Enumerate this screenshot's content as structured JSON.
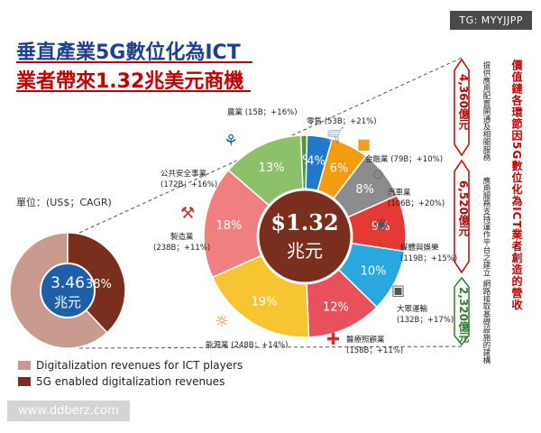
{
  "titles": {
    "line1": "垂直產業5G數位化為ICT",
    "line2": "業者帶來1.32兆美元商機"
  },
  "badges": {
    "tg": "TG: MYYJJPP",
    "source": "www.ddberz.com"
  },
  "labels": {
    "unit": "單位：(US$；CAGR)",
    "side_title": "價值鏈各環節因5G數位化為ICT業者創造的營收"
  },
  "centers": {
    "big_amount": "$1.32",
    "big_unit": "兆元",
    "small_amount": "3.46",
    "small_unit": "兆元"
  },
  "industries": [
    {
      "name": "農業",
      "detail": "(15B；+16%)"
    },
    {
      "name": "零售",
      "detail": "(53B；+21%)"
    },
    {
      "name": "金融業",
      "detail": "(79B；+10%)"
    },
    {
      "name": "汽車業",
      "detail": "(106B；+20%)"
    },
    {
      "name": "媒體與娛樂",
      "detail": "(119B；+15%)"
    },
    {
      "name": "大眾運輸",
      "detail": "(132B；+17%)"
    },
    {
      "name": "醫療照顧業",
      "detail": "(158B；+11%)"
    },
    {
      "name": "能源業",
      "detail": "(248B；+14%)"
    },
    {
      "name": "製造業",
      "detail": "(238B；+11%)"
    },
    {
      "name": "公共安全事業",
      "detail": "(172B；+16%)"
    }
  ],
  "chain": [
    {
      "amount": "4,360億元",
      "desc": "提供應用配置開通及相關服務"
    },
    {
      "amount": "6,520億元",
      "desc": "應用服務支持運作平台之建立"
    },
    {
      "amount": "2,320億元",
      "desc": "網路接取基礎設施的建構"
    }
  ],
  "chart_data": [
    {
      "type": "pie",
      "title": "$1.32 兆元",
      "slices": [
        {
          "name": "農業",
          "value": 1,
          "label_text": "1%",
          "color": "#4a9a3a"
        },
        {
          "name": "零售",
          "value": 4,
          "label_text": "4%",
          "color": "#1f78c8"
        },
        {
          "name": "金融業",
          "value": 6,
          "label_text": "6%",
          "color": "#f39c12"
        },
        {
          "name": "汽車業",
          "value": 8,
          "label_text": "8%",
          "color": "#8c8c8c"
        },
        {
          "name": "媒體與娛樂",
          "value": 9,
          "label_text": "9%",
          "color": "#e53935"
        },
        {
          "name": "大眾運輸",
          "value": 10,
          "label_text": "10%",
          "color": "#29a8e0"
        },
        {
          "name": "醫療照顧業",
          "value": 12,
          "label_text": "12%",
          "color": "#e8505b"
        },
        {
          "name": "能源業",
          "value": 19,
          "label_text": "19%",
          "color": "#f7c531"
        },
        {
          "name": "製造業",
          "value": 18,
          "label_text": "18%",
          "color": "#f08080"
        },
        {
          "name": "公共安全事業",
          "value": 13,
          "label_text": "13%",
          "color": "#8dc06a"
        }
      ]
    },
    {
      "type": "pie",
      "title": "3.46 兆元",
      "slices": [
        {
          "name": "Digitalization revenues for ICT players",
          "value": 62,
          "label_text": "",
          "color": "#c99b8f"
        },
        {
          "name": "5G enabled digitalization revenues",
          "value": 38,
          "label_text": "38%",
          "color": "#7a2e1d"
        }
      ]
    }
  ]
}
